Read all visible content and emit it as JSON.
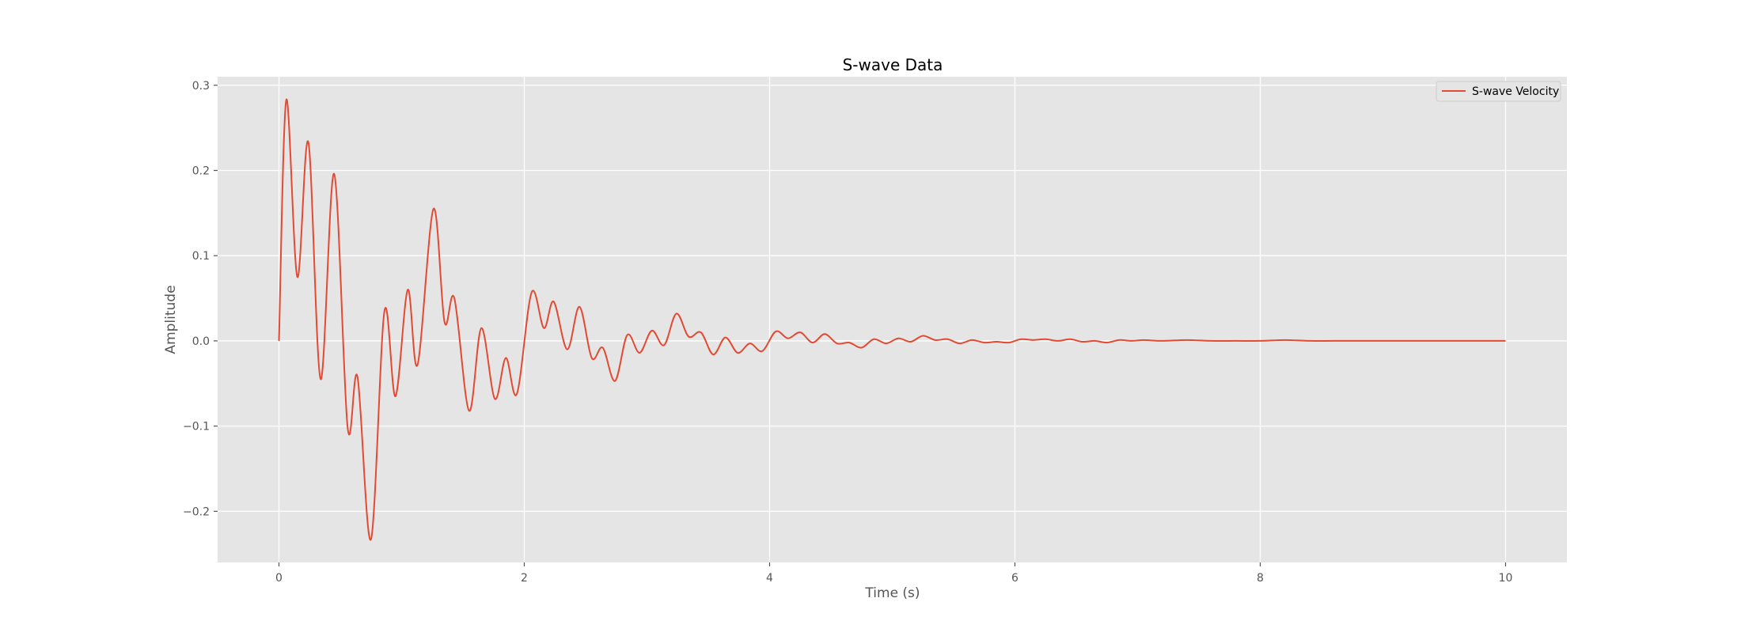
{
  "chart_data": {
    "type": "line",
    "title": "S-wave Data",
    "xlabel": "Time (s)",
    "ylabel": "Amplitude",
    "xlim": [
      -0.5,
      10.5
    ],
    "ylim": [
      -0.26,
      0.31
    ],
    "xticks": [
      0,
      2,
      4,
      6,
      8,
      10
    ],
    "xtick_labels": [
      "0",
      "2",
      "4",
      "6",
      "8",
      "10"
    ],
    "yticks": [
      -0.2,
      -0.1,
      0.0,
      0.1,
      0.2,
      0.3
    ],
    "ytick_labels": [
      "−0.2",
      "−0.1",
      "0.0",
      "0.1",
      "0.2",
      "0.3"
    ],
    "grid": true,
    "legend_position": "top-right",
    "series": [
      {
        "name": "S-wave Velocity",
        "color": "#e24a33",
        "x": [
          0,
          0.06,
          0.15,
          0.24,
          0.34,
          0.45,
          0.56,
          0.64,
          0.75,
          0.86,
          0.95,
          1.05,
          1.13,
          1.26,
          1.35,
          1.43,
          1.55,
          1.65,
          1.76,
          1.85,
          1.94,
          2.06,
          2.16,
          2.24,
          2.35,
          2.45,
          2.55,
          2.64,
          2.74,
          2.84,
          2.94,
          3.04,
          3.14,
          3.24,
          3.34,
          3.44,
          3.54,
          3.64,
          3.74,
          3.84,
          3.94,
          4.05,
          4.15,
          4.25,
          4.35,
          4.45,
          4.55,
          4.65,
          4.75,
          4.85,
          4.95,
          5.05,
          5.15,
          5.25,
          5.35,
          5.45,
          5.55,
          5.65,
          5.75,
          5.85,
          5.95,
          6.05,
          6.15,
          6.25,
          6.35,
          6.45,
          6.55,
          6.65,
          6.75,
          6.85,
          6.95,
          7.05,
          7.2,
          7.4,
          7.6,
          7.8,
          8.0,
          8.2,
          8.4,
          8.6,
          8.8,
          9.0,
          9.2,
          9.4,
          9.6,
          9.8,
          10.0
        ],
        "y": [
          0.0,
          0.283,
          0.075,
          0.233,
          -0.045,
          0.196,
          -0.102,
          -0.042,
          -0.233,
          0.035,
          -0.065,
          0.06,
          -0.028,
          0.155,
          0.022,
          0.05,
          -0.082,
          0.015,
          -0.068,
          -0.02,
          -0.062,
          0.057,
          0.015,
          0.046,
          -0.01,
          0.04,
          -0.02,
          -0.008,
          -0.047,
          0.007,
          -0.014,
          0.012,
          -0.005,
          0.032,
          0.005,
          0.01,
          -0.016,
          0.004,
          -0.014,
          -0.003,
          -0.012,
          0.011,
          0.003,
          0.01,
          -0.002,
          0.008,
          -0.003,
          -0.002,
          -0.008,
          0.002,
          -0.003,
          0.003,
          -0.001,
          0.006,
          0.001,
          0.002,
          -0.003,
          0.001,
          -0.002,
          -0.001,
          -0.002,
          0.002,
          0.001,
          0.002,
          0.0,
          0.002,
          -0.001,
          0.0,
          -0.002,
          0.001,
          0.0,
          0.001,
          0.0,
          0.001,
          0.0,
          0.0,
          0.0,
          0.001,
          0.0,
          0.0,
          0.0,
          0.0,
          0.0,
          0.0,
          0.0,
          0.0,
          0.0
        ]
      }
    ]
  }
}
